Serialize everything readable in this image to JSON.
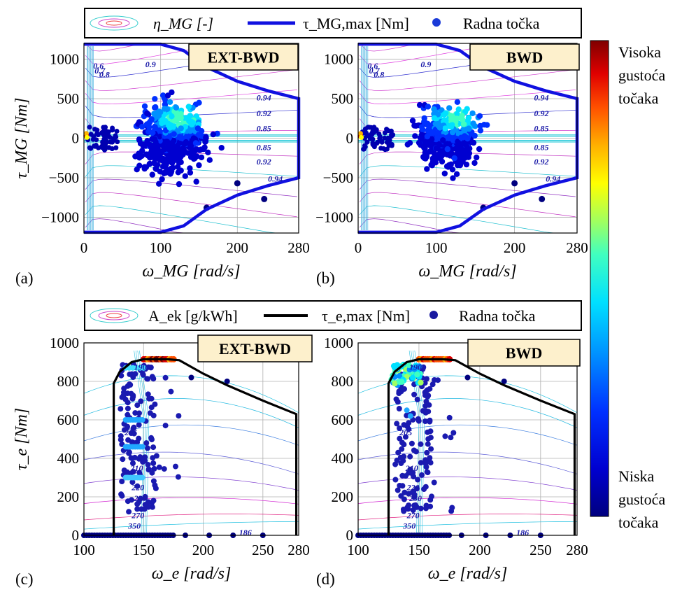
{
  "colorbar": {
    "high_label": [
      "Visoka",
      "gustoća",
      "točaka"
    ],
    "low_label": [
      "Niska",
      "gustoća",
      "točaka"
    ],
    "colors": [
      "#00007f",
      "#0000d0",
      "#0030ff",
      "#0090ff",
      "#00e0ff",
      "#40ffc0",
      "#a0ff60",
      "#ffff00",
      "#ffb000",
      "#ff5000",
      "#e00000",
      "#800000"
    ]
  },
  "legend_top": {
    "efficiency_label": "η_MG [-]",
    "max_torque_label": "τ_MG,max [Nm]",
    "point_label": "Radna točka"
  },
  "legend_bottom": {
    "consumption_label": "A_ek [g/kWh]",
    "max_torque_label": "τ_e,max [Nm]",
    "point_label": "Radna točka"
  },
  "colors": {
    "mg_boundary": "#1010e0",
    "engine_boundary": "#000000",
    "box_fill": "#fdf0cc",
    "grid": "#b0b0b0"
  },
  "chart_data": [
    {
      "panel": "(a)",
      "mode_label": "EXT-BWD",
      "type": "scatter",
      "xlabel": "ω_MG [rad/s]",
      "ylabel": "τ_MG [Nm]",
      "xlim": [
        0,
        280
      ],
      "ylim": [
        -1200,
        1200
      ],
      "x_ticks": [
        0,
        100,
        200,
        280
      ],
      "y_ticks": [
        -1000,
        -500,
        0,
        500,
        1000
      ],
      "grid": true,
      "contour_labels": [
        "0.6",
        "0.7",
        "0.8",
        "0.9",
        "0.94",
        "0.92",
        "0.85"
      ],
      "max_torque_curve": {
        "x": [
          0,
          50,
          100,
          130,
          160,
          200,
          240,
          280,
          280
        ],
        "y": [
          1190,
          1190,
          1190,
          1110,
          900,
          720,
          600,
          500,
          0
        ]
      }
    },
    {
      "panel": "(b)",
      "mode_label": "BWD",
      "type": "scatter",
      "xlabel": "ω_MG [rad/s]",
      "ylabel": "τ_MG [Nm]",
      "xlim": [
        0,
        280
      ],
      "ylim": [
        -1200,
        1200
      ],
      "x_ticks": [
        0,
        100,
        200,
        280
      ],
      "y_ticks": [
        -1000,
        -500,
        0,
        500,
        1000
      ],
      "grid": true,
      "contour_labels": [
        "0.6",
        "0.7",
        "0.8",
        "0.9",
        "0.94",
        "0.92",
        "0.85"
      ],
      "max_torque_curve": {
        "x": [
          0,
          50,
          100,
          130,
          160,
          200,
          240,
          280,
          280
        ],
        "y": [
          1190,
          1190,
          1190,
          1110,
          900,
          720,
          600,
          500,
          0
        ]
      }
    },
    {
      "panel": "(c)",
      "mode_label": "EXT-BWD",
      "type": "scatter",
      "xlabel": "ω_e [rad/s]",
      "ylabel": "τ_e [Nm]",
      "xlim": [
        100,
        280
      ],
      "ylim": [
        0,
        1000
      ],
      "x_ticks": [
        100,
        150,
        200,
        250,
        280
      ],
      "y_ticks": [
        0,
        200,
        400,
        600,
        800,
        1000
      ],
      "grid": true,
      "contour_labels": [
        "190",
        "205",
        "210",
        "220",
        "230",
        "270",
        "350",
        "186"
      ],
      "max_torque_curve": {
        "x": [
          125,
          125,
          130,
          140,
          150,
          160,
          170,
          180,
          200,
          220,
          250,
          278,
          278
        ],
        "y": [
          0,
          790,
          850,
          900,
          915,
          915,
          915,
          910,
          840,
          780,
          700,
          630,
          0
        ]
      }
    },
    {
      "panel": "(d)",
      "mode_label": "BWD",
      "type": "scatter",
      "xlabel": "ω_e [rad/s]",
      "ylabel": "τ_e [Nm]",
      "xlim": [
        100,
        280
      ],
      "ylim": [
        0,
        1000
      ],
      "x_ticks": [
        100,
        150,
        200,
        250,
        280
      ],
      "y_ticks": [
        0,
        200,
        400,
        600,
        800,
        1000
      ],
      "grid": true,
      "contour_labels": [
        "190",
        "205",
        "210",
        "220",
        "230",
        "270",
        "350",
        "186"
      ],
      "max_torque_curve": {
        "x": [
          125,
          125,
          130,
          140,
          150,
          160,
          170,
          180,
          200,
          220,
          250,
          278,
          278
        ],
        "y": [
          0,
          790,
          850,
          900,
          915,
          915,
          915,
          910,
          840,
          780,
          700,
          630,
          0
        ]
      }
    }
  ]
}
